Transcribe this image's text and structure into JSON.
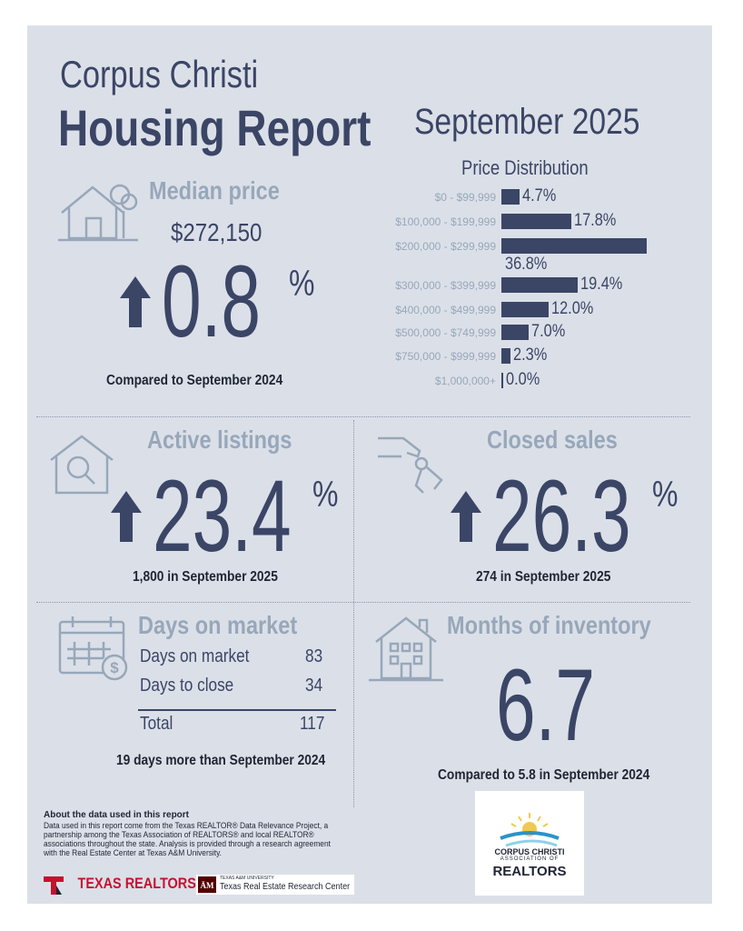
{
  "header": {
    "city": "Corpus Christi",
    "report": "Housing Report",
    "month": "September 2025"
  },
  "median_price": {
    "title": "Median price",
    "price": "$272,150",
    "change": "0.8",
    "pct_sign": "%",
    "caption": "Compared to September 2024"
  },
  "price_distribution": {
    "title": "Price Distribution",
    "bins": [
      {
        "label": "$0 - $99,999",
        "percent": 4.7,
        "value_label": "4.7%"
      },
      {
        "label": "$100,000 - $199,999",
        "percent": 17.8,
        "value_label": "17.8%"
      },
      {
        "label": "$200,000 - $299,999",
        "percent": 36.8,
        "value_label": "36.8%"
      },
      {
        "label": "$300,000 - $399,999",
        "percent": 19.4,
        "value_label": "19.4%"
      },
      {
        "label": "$400,000 - $499,999",
        "percent": 12.0,
        "value_label": "12.0%"
      },
      {
        "label": "$500,000 - $749,999",
        "percent": 7.0,
        "value_label": "7.0%"
      },
      {
        "label": "$750,000 - $999,999",
        "percent": 2.3,
        "value_label": "2.3%"
      },
      {
        "label": "$1,000,000+",
        "percent": 0.0,
        "value_label": "0.0%"
      }
    ]
  },
  "active_listings": {
    "title": "Active listings",
    "change": "23.4",
    "pct_sign": "%",
    "caption": "1,800 in September 2025"
  },
  "closed_sales": {
    "title": "Closed sales",
    "change": "26.3",
    "pct_sign": "%",
    "caption": "274 in September 2025"
  },
  "days_on_market": {
    "title": "Days on market",
    "rows": [
      {
        "label": "Days on market",
        "value": "83"
      },
      {
        "label": "Days to close",
        "value": "34"
      }
    ],
    "total_label": "Total",
    "total_value": "117",
    "caption": "19 days more than September 2024"
  },
  "months_inventory": {
    "title": "Months of inventory",
    "value": "6.7",
    "caption": "Compared to 5.8 in September 2024"
  },
  "footer": {
    "about_heading": "About the data used in this report",
    "about_text": "Data used in this report come from the Texas REALTOR® Data Relevance Project, a partnership among the Texas Association of REALTORS® and local REALTOR® associations throughout the state. Analysis is provided through a research agreement with the Real Estate Center at Texas A&M University.",
    "texas_realtors": "TEXAS REALTORS",
    "tamu_small": "TEXAS A&M UNIVERSITY",
    "tamu_center": "Texas Real Estate Research Center",
    "assoc_line1": "CORPUS CHRISTI",
    "assoc_line2": "ASSOCIATION OF",
    "assoc_line3": "REALTORS"
  },
  "colors": {
    "navy": "#3b4566",
    "muted": "#98a7ba",
    "panel": "#dbe0e8"
  }
}
